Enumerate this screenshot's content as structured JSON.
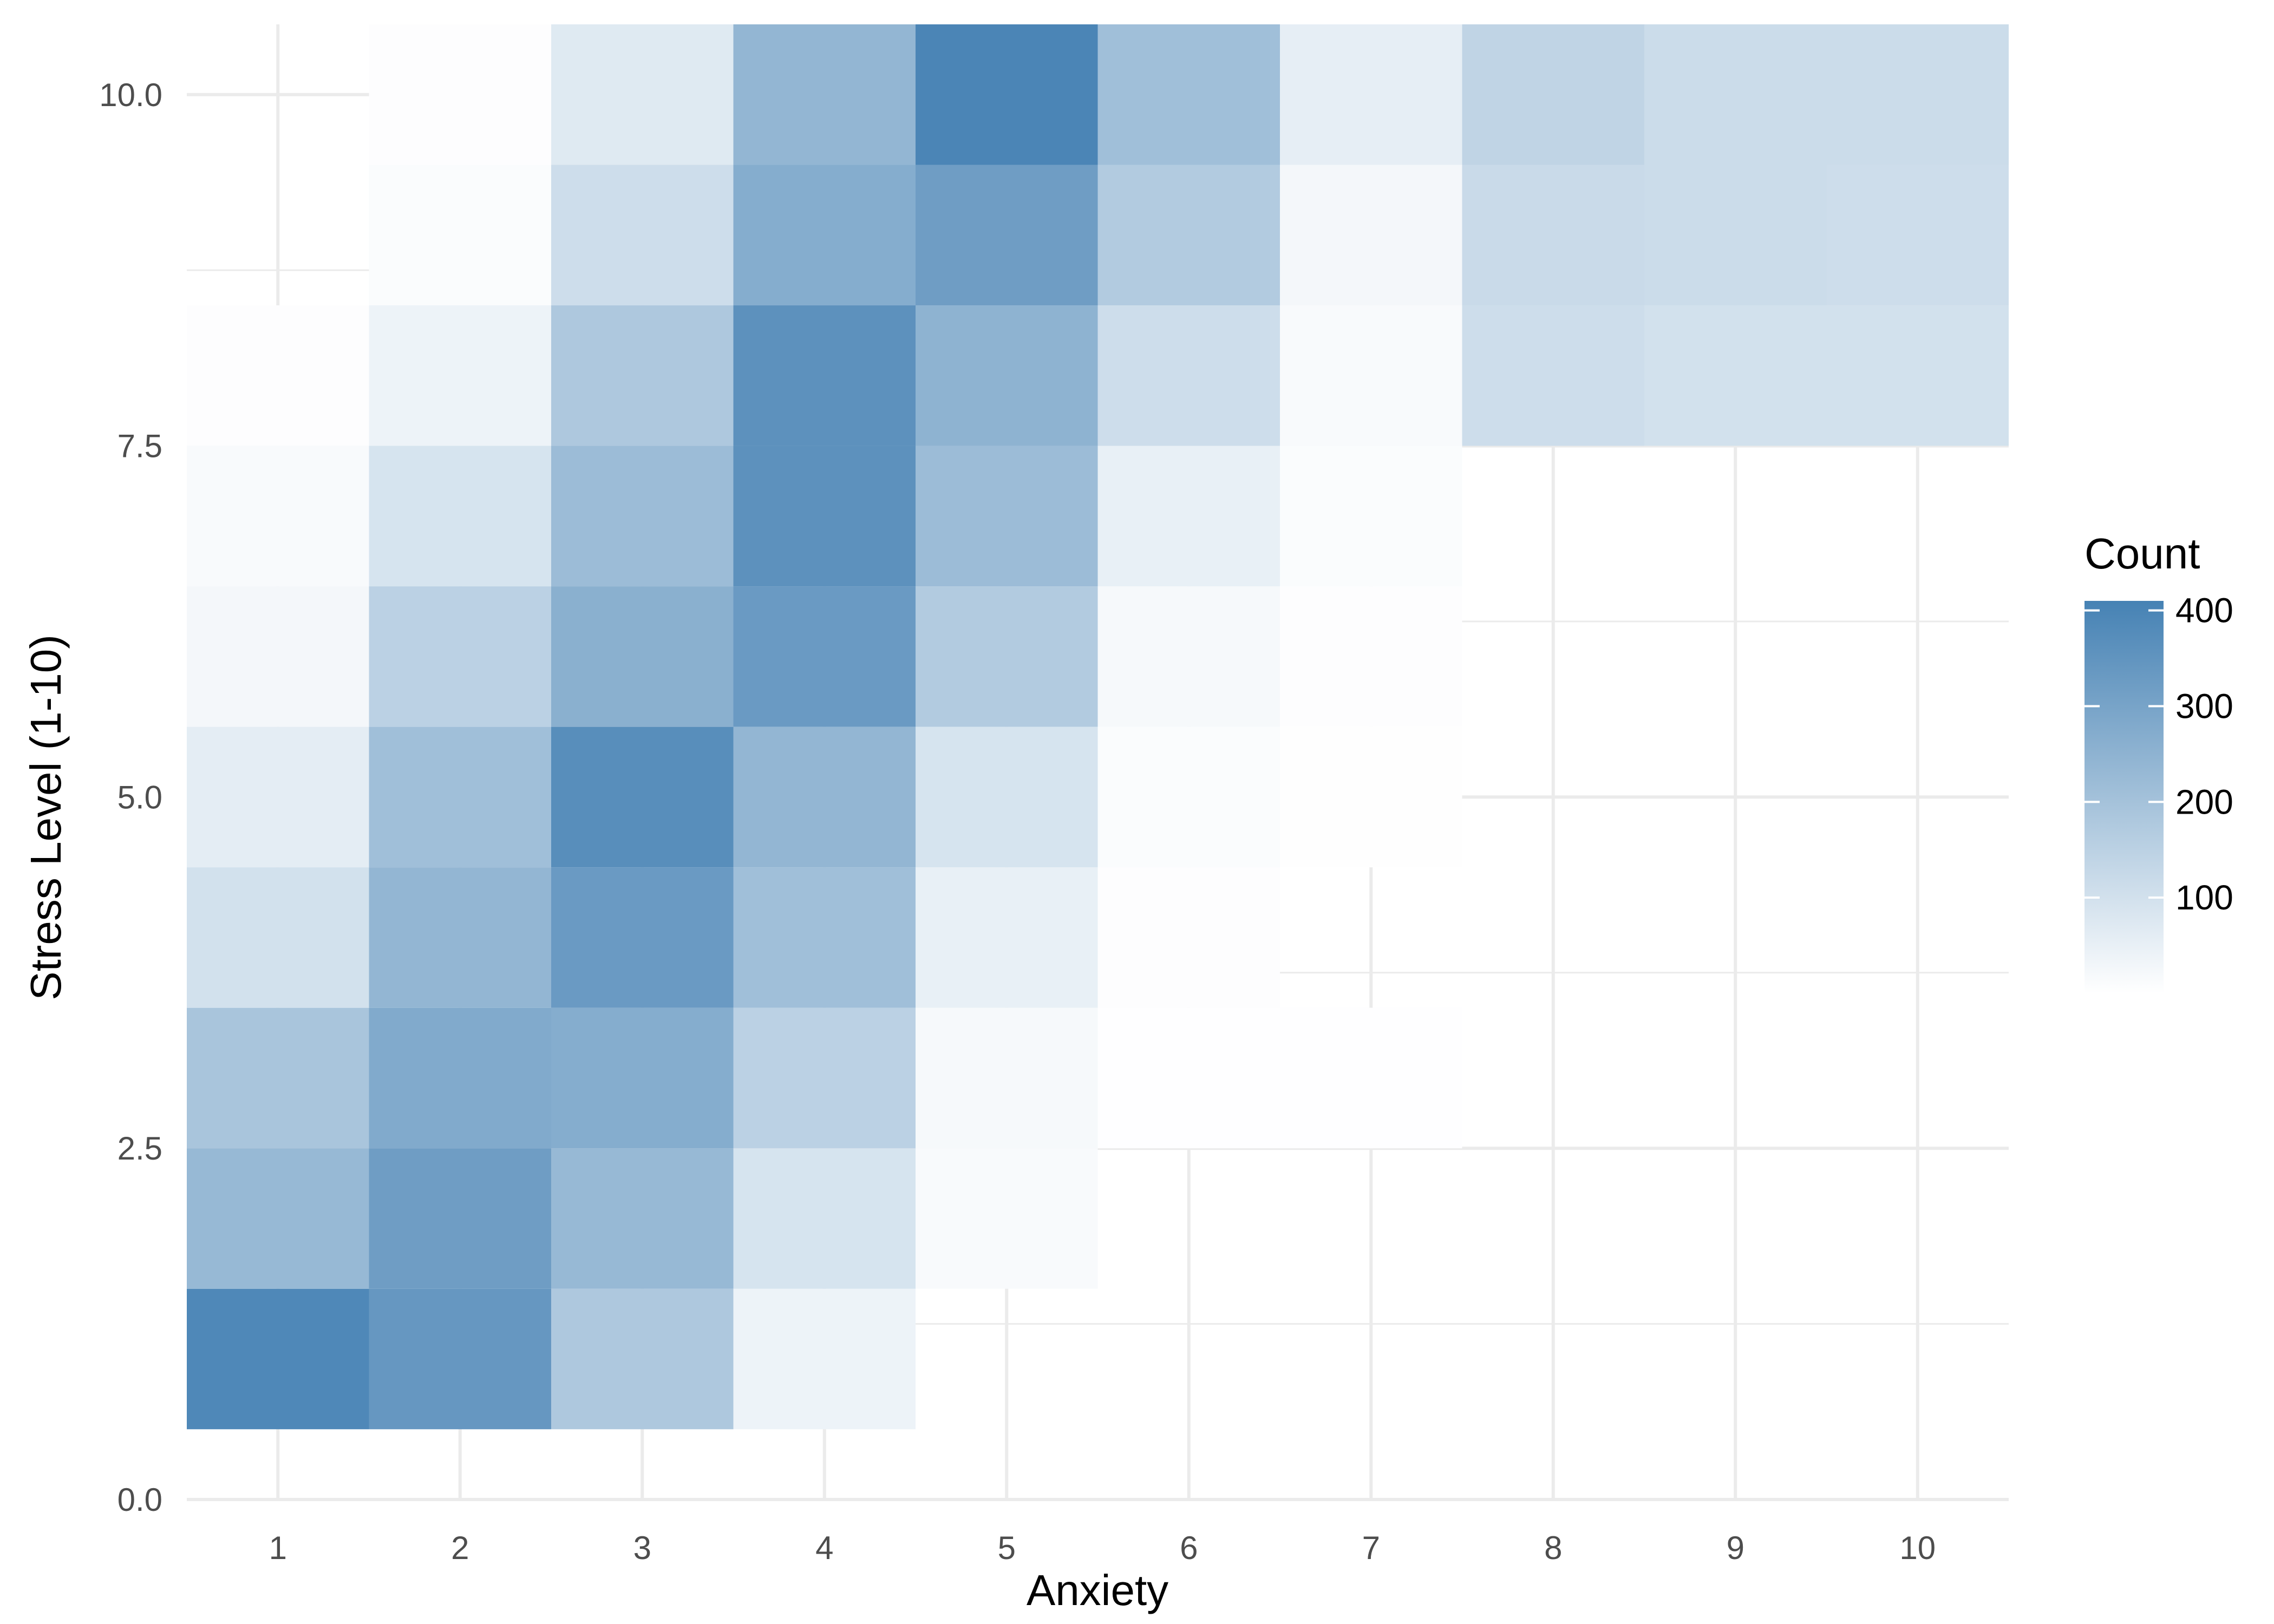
{
  "chart_data": {
    "type": "heatmap",
    "xlabel": "Anxiety",
    "ylabel": "Stress Level (1-10)",
    "x_ticks": [
      1,
      2,
      3,
      4,
      5,
      6,
      7,
      8,
      9,
      10
    ],
    "y_ticks": [
      "0.0",
      "2.5",
      "5.0",
      "7.5",
      "10.0"
    ],
    "xlim": [
      0.5,
      10.5
    ],
    "ylim": [
      0,
      10.5
    ],
    "legend": {
      "title": "Count",
      "labels": [
        "100",
        "200",
        "300",
        "400"
      ],
      "breaks": [
        100,
        200,
        300,
        400
      ],
      "range": [
        0,
        410
      ],
      "placement": "right"
    },
    "colors": {
      "low": "#ffffff",
      "high": "#4682b4"
    },
    "grid": true,
    "values": [
      [
        390,
        340,
        180,
        40,
        0,
        0,
        0,
        0,
        0,
        0
      ],
      [
        230,
        320,
        230,
        90,
        15,
        0,
        0,
        0,
        0,
        0
      ],
      [
        190,
        280,
        270,
        150,
        20,
        2,
        2,
        0,
        0,
        0
      ],
      [
        100,
        240,
        330,
        210,
        50,
        5,
        0,
        0,
        0,
        0
      ],
      [
        60,
        210,
        370,
        240,
        90,
        10,
        3,
        0,
        0,
        0
      ],
      [
        25,
        150,
        260,
        330,
        170,
        20,
        5,
        0,
        0,
        0
      ],
      [
        15,
        90,
        220,
        360,
        220,
        50,
        10,
        0,
        0,
        0
      ],
      [
        5,
        40,
        180,
        360,
        250,
        110,
        15,
        110,
        100,
        100
      ],
      [
        0,
        10,
        110,
        270,
        320,
        170,
        25,
        120,
        115,
        110
      ],
      [
        0,
        5,
        70,
        240,
        400,
        210,
        55,
        140,
        115,
        115
      ]
    ]
  }
}
